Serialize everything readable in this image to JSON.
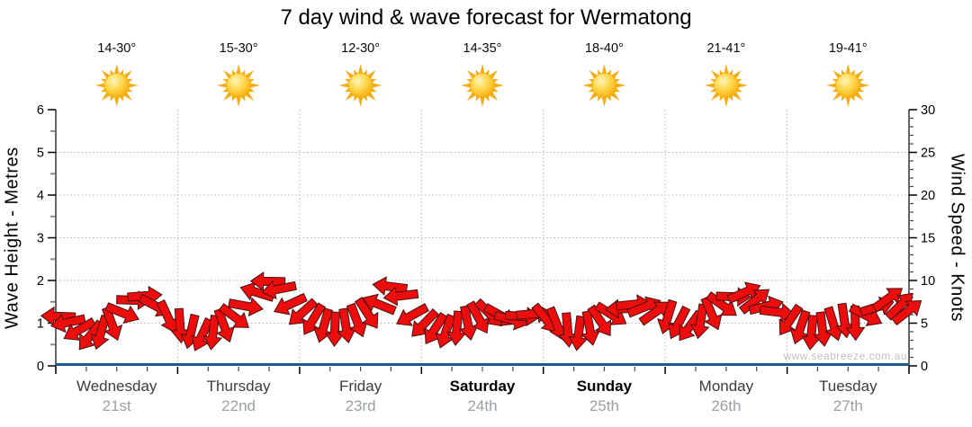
{
  "header": {
    "title": "7 day wind & wave forecast for Wermatong"
  },
  "watermark": "www.seabreeze.com.au",
  "chart_data": {
    "type": "scatter",
    "title": "7 day wind & wave forecast for Wermatong",
    "ylabel_left": "Wave Height - Metres",
    "ylabel_right": "Wind Speed - Knots",
    "ylim_left": [
      0,
      6
    ],
    "ylim_right": [
      0,
      30
    ],
    "left_major_step": 1,
    "left_minor_step": 0.5,
    "right_major_step": 5,
    "right_minor_step": 1,
    "grid": "dotted",
    "legend": "none",
    "days": [
      {
        "name": "Wednesday",
        "date": "21st",
        "temp": "14-30°",
        "weekend": false
      },
      {
        "name": "Thursday",
        "date": "22nd",
        "temp": "15-30°",
        "weekend": false
      },
      {
        "name": "Friday",
        "date": "23rd",
        "temp": "12-30°",
        "weekend": false
      },
      {
        "name": "Saturday",
        "date": "24th",
        "temp": "14-35°",
        "weekend": true
      },
      {
        "name": "Sunday",
        "date": "25th",
        "temp": "18-40°",
        "weekend": true
      },
      {
        "name": "Monday",
        "date": "26th",
        "temp": "21-41°",
        "weekend": false
      },
      {
        "name": "Tuesday",
        "date": "27th",
        "temp": "19-41°",
        "weekend": false
      }
    ],
    "weather_icon": "sun-icon",
    "wave_height_m": [
      0,
      0,
      0,
      0,
      0,
      0,
      0,
      0
    ],
    "wind_arrows_format": [
      "time_days",
      "speed_knots",
      "direction_deg_pointing"
    ],
    "wind_arrows": [
      [
        0.02,
        5.8,
        272
      ],
      [
        0.1,
        5.1,
        258
      ],
      [
        0.19,
        4.2,
        240
      ],
      [
        0.28,
        3.5,
        218
      ],
      [
        0.37,
        3.9,
        196
      ],
      [
        0.46,
        4.9,
        160
      ],
      [
        0.55,
        6.2,
        112
      ],
      [
        0.64,
        7.7,
        92
      ],
      [
        0.73,
        8.2,
        86
      ],
      [
        0.82,
        7.0,
        118
      ],
      [
        0.92,
        5.7,
        155
      ],
      [
        1.02,
        4.7,
        176
      ],
      [
        1.11,
        4.0,
        193
      ],
      [
        1.2,
        3.6,
        205
      ],
      [
        1.29,
        3.9,
        187
      ],
      [
        1.38,
        4.7,
        160
      ],
      [
        1.47,
        5.7,
        127
      ],
      [
        1.56,
        7.0,
        100
      ],
      [
        1.65,
        8.6,
        287
      ],
      [
        1.74,
        9.9,
        271
      ],
      [
        1.83,
        9.0,
        259
      ],
      [
        1.92,
        7.2,
        245
      ],
      [
        2.02,
        6.2,
        228
      ],
      [
        2.11,
        5.4,
        211
      ],
      [
        2.2,
        4.7,
        196
      ],
      [
        2.29,
        4.3,
        182
      ],
      [
        2.38,
        4.7,
        171
      ],
      [
        2.47,
        5.3,
        159
      ],
      [
        2.56,
        6.1,
        147
      ],
      [
        2.65,
        7.2,
        292
      ],
      [
        2.74,
        9.3,
        277
      ],
      [
        2.83,
        8.2,
        263
      ],
      [
        2.92,
        5.9,
        241
      ],
      [
        3.02,
        4.9,
        224
      ],
      [
        3.11,
        4.3,
        212
      ],
      [
        3.2,
        4.0,
        199
      ],
      [
        3.29,
        4.4,
        185
      ],
      [
        3.38,
        5.0,
        169
      ],
      [
        3.47,
        5.6,
        151
      ],
      [
        3.56,
        6.1,
        135
      ],
      [
        3.65,
        5.9,
        119
      ],
      [
        3.74,
        5.4,
        105
      ],
      [
        3.83,
        5.8,
        93
      ],
      [
        3.92,
        6.1,
        85
      ],
      [
        4.02,
        5.5,
        141
      ],
      [
        4.11,
        4.9,
        158
      ],
      [
        4.2,
        4.2,
        175
      ],
      [
        4.29,
        3.8,
        187
      ],
      [
        4.38,
        4.4,
        169
      ],
      [
        4.47,
        5.2,
        146
      ],
      [
        4.56,
        6.0,
        122
      ],
      [
        4.65,
        6.7,
        268
      ],
      [
        4.74,
        7.2,
        84
      ],
      [
        4.83,
        6.9,
        68
      ],
      [
        4.92,
        6.3,
        55
      ],
      [
        5.02,
        5.7,
        197
      ],
      [
        5.11,
        5.0,
        207
      ],
      [
        5.2,
        4.6,
        216
      ],
      [
        5.29,
        5.2,
        189
      ],
      [
        5.38,
        6.1,
        157
      ],
      [
        5.47,
        7.1,
        126
      ],
      [
        5.56,
        8.1,
        92
      ],
      [
        5.65,
        8.6,
        66
      ],
      [
        5.74,
        7.7,
        52
      ],
      [
        5.83,
        7.0,
        76
      ],
      [
        5.92,
        6.3,
        97
      ],
      [
        6.02,
        5.3,
        214
      ],
      [
        6.11,
        4.5,
        199
      ],
      [
        6.2,
        3.9,
        185
      ],
      [
        6.29,
        4.3,
        173
      ],
      [
        6.38,
        4.9,
        163
      ],
      [
        6.47,
        5.3,
        172
      ],
      [
        6.56,
        5.0,
        179
      ],
      [
        6.65,
        5.9,
        117
      ],
      [
        6.74,
        6.9,
        73
      ],
      [
        6.83,
        7.9,
        54
      ],
      [
        6.93,
        7.1,
        46
      ],
      [
        6.99,
        6.4,
        52
      ]
    ],
    "colors": {
      "arrow_fill": "#ec0d0d",
      "arrow_stroke": "#4a1010",
      "wave_line": "#1a5c8a",
      "grid": "#b5b5b5",
      "day_label": "#3d3d3d",
      "weekend_label": "#000000",
      "date_label": "#9aa0a4",
      "sun_ray": "#f6ac15",
      "sun_core_light": "#fff4bc",
      "sun_core_mid": "#ffd84f",
      "sun_core_dark": "#f4a600"
    }
  }
}
